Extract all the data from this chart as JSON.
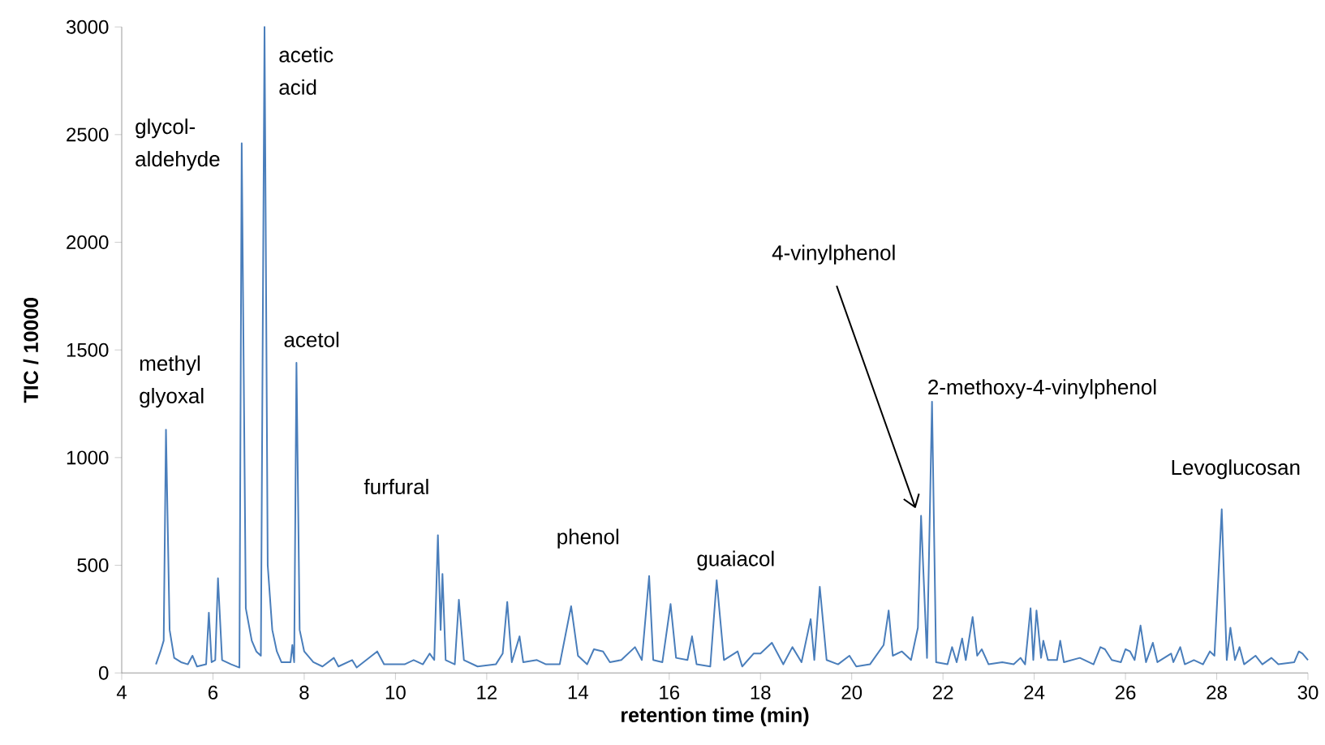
{
  "chart_data": {
    "type": "line",
    "xlabel": "retention time (min)",
    "ylabel": "TIC / 10000",
    "xlim": [
      4,
      30
    ],
    "xticks": [
      4,
      6,
      8,
      10,
      12,
      14,
      16,
      18,
      20,
      22,
      24,
      26,
      28,
      30
    ],
    "ylim": [
      0,
      3000
    ],
    "yticks": [
      0,
      500,
      1000,
      1500,
      2000,
      2500,
      3000
    ],
    "series": [
      {
        "color": "#4a7ebb",
        "x": [
          4.75,
          4.85,
          4.92,
          4.97,
          5.05,
          5.15,
          5.3,
          5.45,
          5.55,
          5.65,
          5.85,
          5.91,
          5.97,
          6.05,
          6.11,
          6.2,
          6.4,
          6.58,
          6.63,
          6.72,
          6.85,
          6.95,
          7.05,
          7.13,
          7.2,
          7.3,
          7.4,
          7.5,
          7.7,
          7.74,
          7.78,
          7.83,
          7.9,
          8.0,
          8.2,
          8.4,
          8.65,
          8.75,
          9.05,
          9.15,
          9.6,
          9.75,
          10.0,
          10.2,
          10.4,
          10.6,
          10.75,
          10.85,
          10.93,
          10.99,
          11.03,
          11.1,
          11.3,
          11.39,
          11.5,
          11.8,
          12.2,
          12.35,
          12.45,
          12.55,
          12.72,
          12.8,
          13.1,
          13.3,
          13.6,
          13.85,
          14.0,
          14.2,
          14.35,
          14.55,
          14.7,
          14.95,
          15.25,
          15.4,
          15.56,
          15.65,
          15.85,
          16.03,
          16.15,
          16.4,
          16.5,
          16.6,
          16.9,
          17.04,
          17.2,
          17.5,
          17.6,
          17.85,
          18.0,
          18.25,
          18.5,
          18.7,
          18.9,
          19.1,
          19.18,
          19.3,
          19.45,
          19.7,
          19.95,
          20.1,
          20.4,
          20.7,
          20.81,
          20.9,
          21.1,
          21.3,
          21.45,
          21.52,
          21.65,
          21.76,
          21.85,
          22.1,
          22.2,
          22.3,
          22.42,
          22.5,
          22.65,
          22.75,
          22.85,
          23.0,
          23.3,
          23.55,
          23.7,
          23.8,
          23.92,
          23.98,
          24.05,
          24.15,
          24.2,
          24.3,
          24.5,
          24.57,
          24.65,
          25.0,
          25.3,
          25.45,
          25.55,
          25.7,
          25.9,
          26.0,
          26.1,
          26.2,
          26.33,
          26.45,
          26.6,
          26.7,
          27.0,
          27.05,
          27.2,
          27.3,
          27.5,
          27.7,
          27.85,
          27.95,
          28.11,
          28.22,
          28.3,
          28.4,
          28.5,
          28.6,
          28.85,
          29.0,
          29.2,
          29.35,
          29.7,
          29.8,
          29.88,
          30.0
        ],
        "values": [
          40,
          100,
          150,
          1130,
          200,
          70,
          50,
          40,
          80,
          30,
          40,
          280,
          50,
          60,
          440,
          60,
          40,
          25,
          2460,
          300,
          150,
          100,
          80,
          3000,
          500,
          200,
          100,
          50,
          50,
          130,
          50,
          1440,
          200,
          100,
          50,
          30,
          70,
          30,
          60,
          25,
          100,
          40,
          40,
          40,
          60,
          40,
          90,
          60,
          640,
          200,
          460,
          60,
          40,
          340,
          60,
          30,
          40,
          90,
          330,
          50,
          170,
          50,
          60,
          40,
          40,
          310,
          80,
          40,
          110,
          100,
          50,
          60,
          120,
          60,
          450,
          60,
          50,
          320,
          70,
          60,
          170,
          40,
          30,
          430,
          60,
          100,
          30,
          90,
          90,
          140,
          40,
          120,
          50,
          250,
          60,
          400,
          60,
          40,
          80,
          30,
          40,
          130,
          290,
          80,
          100,
          60,
          210,
          730,
          70,
          1260,
          50,
          40,
          120,
          50,
          160,
          60,
          260,
          80,
          110,
          40,
          50,
          40,
          70,
          40,
          300,
          60,
          290,
          70,
          150,
          60,
          60,
          150,
          50,
          70,
          40,
          120,
          110,
          60,
          50,
          110,
          100,
          60,
          220,
          50,
          140,
          50,
          90,
          50,
          120,
          40,
          60,
          40,
          100,
          80,
          760,
          60,
          210,
          60,
          120,
          40,
          80,
          40,
          70,
          40,
          50,
          100,
          90,
          60
        ]
      }
    ],
    "annotations": [
      {
        "text": "methyl glyoxal",
        "x": 4.97,
        "y": 1130
      },
      {
        "text": "glycol-aldehyde",
        "x": 6.63,
        "y": 2460
      },
      {
        "text": "acetic acid",
        "x": 7.13,
        "y": 3000
      },
      {
        "text": "acetol",
        "x": 7.83,
        "y": 1440
      },
      {
        "text": "furfural",
        "x": 10.93,
        "y": 640
      },
      {
        "text": "phenol",
        "x": 13.85,
        "y": 310
      },
      {
        "text": "guaiacol",
        "x": 17.04,
        "y": 430
      },
      "4-vinylphenol",
      {
        "text": "2-methoxy-4-vinylphenol",
        "x": 21.76,
        "y": 1260
      },
      {
        "text": "Levoglucosan",
        "x": 28.11,
        "y": 760
      }
    ]
  }
}
